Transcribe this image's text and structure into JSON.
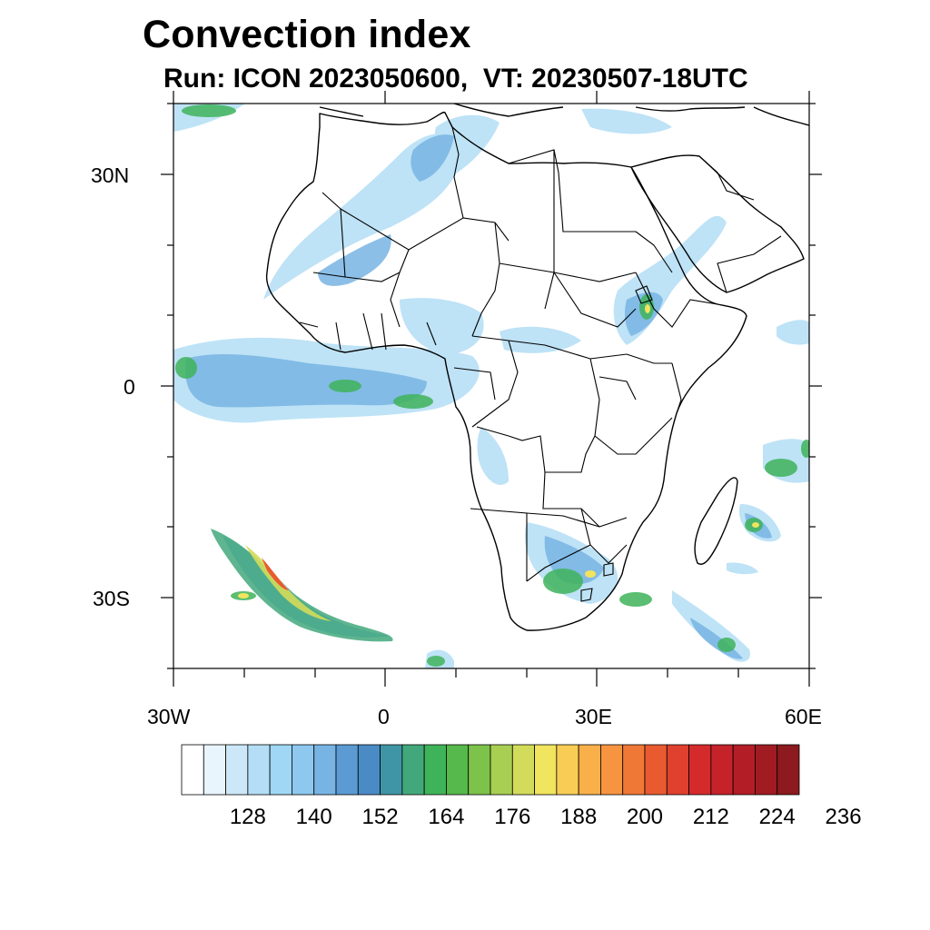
{
  "header": {
    "title": "Convection index",
    "subtitle": "Run: ICON 2023050600,  VT: 20230507-18UTC"
  },
  "map": {
    "region": "Africa",
    "projection": "cylindrical-equidistant",
    "lon_range": [
      -30,
      60
    ],
    "lat_range": [
      -40,
      40
    ],
    "lat_tick_labels": [
      {
        "value": 30,
        "label": "30N"
      },
      {
        "value": 0,
        "label": "0"
      },
      {
        "value": -30,
        "label": "30S"
      }
    ],
    "lon_tick_labels": [
      {
        "value": -30,
        "label": "30W"
      },
      {
        "value": 0,
        "label": "0"
      },
      {
        "value": 30,
        "label": "30E"
      },
      {
        "value": 60,
        "label": "60E"
      }
    ]
  },
  "colorbar": {
    "labels": [
      "128",
      "140",
      "152",
      "164",
      "176",
      "188",
      "200",
      "212",
      "224",
      "236"
    ],
    "colors": [
      "#ffffff",
      "#e8f5fc",
      "#cce8f8",
      "#b3def5",
      "#9fd7f5",
      "#8ec8ee",
      "#78b4e3",
      "#5b9ad3",
      "#4a8bc6",
      "#3f95a5",
      "#42a87c",
      "#3fb35a",
      "#55b94b",
      "#7dc24a",
      "#a8cf52",
      "#d3dc5a",
      "#f1e45e",
      "#f9cd55",
      "#f9b04a",
      "#f69440",
      "#f07837",
      "#e95a30",
      "#e0402e",
      "#d52a2c",
      "#c6222a",
      "#b31d26",
      "#a11b22",
      "#8c1a1e"
    ]
  }
}
